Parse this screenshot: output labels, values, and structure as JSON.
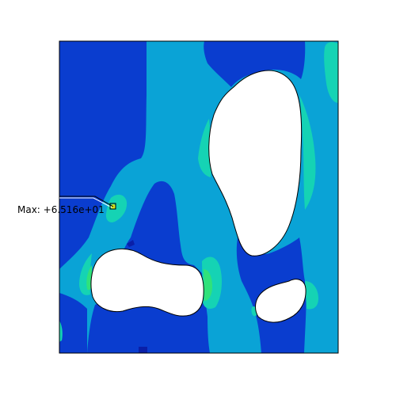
{
  "viewport": {
    "background": "#ffffff",
    "contour_colors": {
      "dark_blue": "#0a3dcf",
      "medium_blue": "#0b52d8",
      "light_blue": "#0aa3d6",
      "cyan_green": "#15d3b4",
      "green": "#30e27a",
      "yellow": "#d8e31a",
      "hole_fill": "#ffffff",
      "edge": "#000000"
    }
  },
  "annotation": {
    "label_prefix": "Max: ",
    "label_value": "+6.516e+01"
  }
}
